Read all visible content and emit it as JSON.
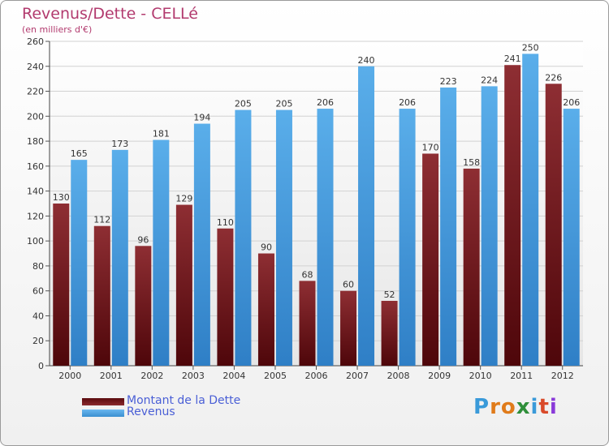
{
  "chart_data": {
    "type": "bar",
    "title": "Revenus/Dette - CELLé",
    "subtitle": "(en milliers d'€)",
    "categories": [
      "2000",
      "2001",
      "2002",
      "2003",
      "2004",
      "2005",
      "2006",
      "2007",
      "2008",
      "2009",
      "2010",
      "2011",
      "2012"
    ],
    "series": [
      {
        "name": "Montant de la Dette",
        "color": "#7a1a1e",
        "values": [
          130,
          112,
          96,
          129,
          110,
          90,
          68,
          60,
          52,
          170,
          158,
          241,
          226
        ]
      },
      {
        "name": "Revenus",
        "color": "#4a9fe0",
        "values": [
          165,
          173,
          181,
          194,
          205,
          205,
          206,
          240,
          206,
          223,
          224,
          250,
          206
        ]
      }
    ],
    "yticks": [
      0,
      20,
      40,
      60,
      80,
      100,
      120,
      140,
      160,
      180,
      200,
      220,
      240,
      260
    ],
    "ylim": [
      0,
      260
    ],
    "grid": true,
    "legend_position": "bottom-left"
  },
  "logo": {
    "text": "Proxiti",
    "letters": [
      "P",
      "r",
      "o",
      "x",
      "i",
      "t",
      "i"
    ],
    "colors": [
      "#3a9ad9",
      "#e07b1a",
      "#e07b1a",
      "#2f8f3a",
      "#3a9ad9",
      "#d94a2a",
      "#8a3ad9"
    ]
  }
}
